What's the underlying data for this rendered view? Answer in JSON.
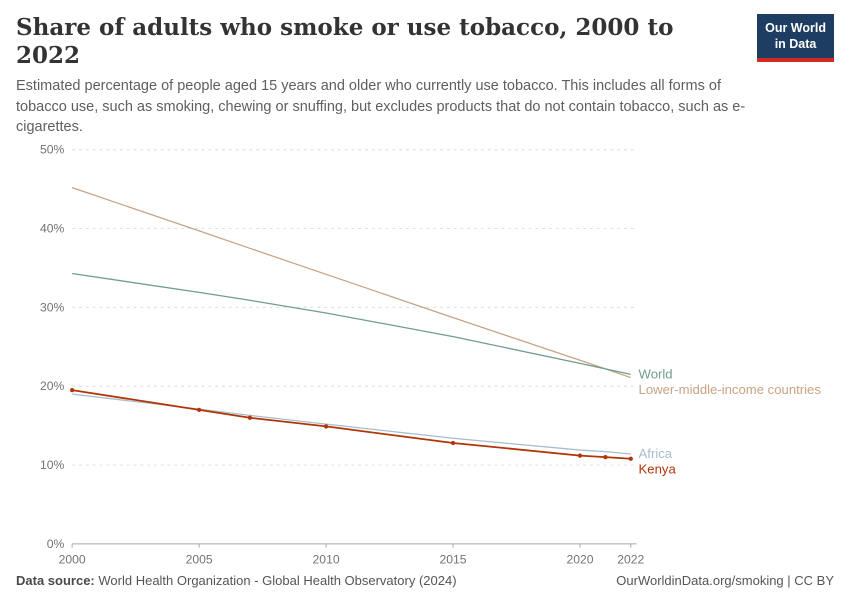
{
  "header": {
    "title": "Share of adults who smoke or use tobacco, 2000 to 2022",
    "subtitle": "Estimated percentage of people aged 15 years and older who currently use tobacco. This includes all forms of tobacco use, such as smoking, chewing or snuffing, but excludes products that do not contain tobacco, such as e-cigarettes.",
    "logo": {
      "line1": "Our World",
      "line2": "in Data",
      "bg": "#1d3d63",
      "accent": "#d12a20"
    }
  },
  "footer": {
    "source_label": "Data source:",
    "source_text": "World Health Organization - Global Health Observatory (2024)",
    "right_text": "OurWorldinData.org/smoking | CC BY"
  },
  "chart_data": {
    "type": "line",
    "title": "Share of adults who smoke or use tobacco, 2000 to 2022",
    "xlabel": "",
    "ylabel": "",
    "x": [
      2000,
      2005,
      2007,
      2010,
      2015,
      2020,
      2021,
      2022
    ],
    "series": [
      {
        "name": "Lower-middle-income countries",
        "color": "#C8A384",
        "markers": false,
        "values": [
          45.2,
          39.7,
          37.5,
          34.2,
          28.7,
          23.3,
          22.2,
          21.1
        ]
      },
      {
        "name": "World",
        "color": "#6E9E8D",
        "markers": false,
        "values": [
          34.3,
          31.9,
          30.9,
          29.3,
          26.3,
          22.9,
          22.2,
          21.5
        ]
      },
      {
        "name": "Africa",
        "color": "#A9BCCB",
        "markers": false,
        "values": [
          19.0,
          17.1,
          16.3,
          15.2,
          13.4,
          11.9,
          11.7,
          11.4
        ]
      },
      {
        "name": "Kenya",
        "color": "#B13507",
        "markers": true,
        "values": [
          19.5,
          17.0,
          16.0,
          14.9,
          12.8,
          11.2,
          11.0,
          10.8
        ]
      }
    ],
    "xlim": [
      2000,
      2022
    ],
    "ylim": [
      0,
      50
    ],
    "xticks": [
      2000,
      2005,
      2010,
      2015,
      2020,
      2022
    ],
    "yticks": [
      0,
      10,
      20,
      30,
      40,
      50
    ],
    "ytick_suffix": "%",
    "grid": true,
    "legend_position": "right-end-labels"
  }
}
